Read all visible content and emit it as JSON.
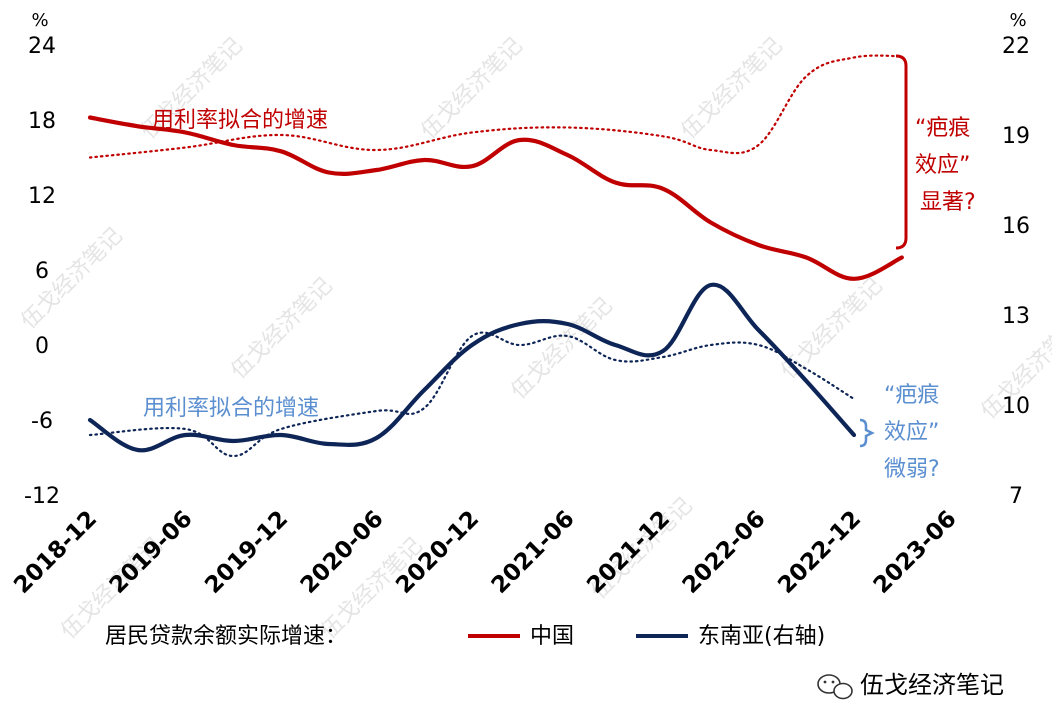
{
  "chart_data": {
    "type": "line",
    "x_categories": [
      "2018-12",
      "2019-06",
      "2019-12",
      "2020-06",
      "2020-12",
      "2021-06",
      "2021-12",
      "2022-06",
      "2022-12",
      "2023-06"
    ],
    "left_axis": {
      "unit": "%",
      "ticks": [
        "24",
        "18",
        "12",
        "6",
        "0",
        "-6",
        "-12"
      ],
      "range": [
        -12,
        24
      ]
    },
    "right_axis": {
      "unit": "%",
      "ticks": [
        "22",
        "19",
        "16",
        "13",
        "10",
        "7"
      ],
      "range": [
        7,
        22
      ]
    },
    "series": [
      {
        "name": "中国",
        "axis": "left",
        "color": "#c00000",
        "style": "solid",
        "points": [
          [
            "2018-12",
            18.2
          ],
          [
            "2019-03",
            17.5
          ],
          [
            "2019-06",
            17.0
          ],
          [
            "2019-09",
            16.0
          ],
          [
            "2019-12",
            15.5
          ],
          [
            "2020-03",
            13.8
          ],
          [
            "2020-06",
            14.0
          ],
          [
            "2020-09",
            14.8
          ],
          [
            "2020-12",
            14.3
          ],
          [
            "2021-03",
            16.4
          ],
          [
            "2021-06",
            15.2
          ],
          [
            "2021-09",
            13.0
          ],
          [
            "2021-12",
            12.5
          ],
          [
            "2022-03",
            9.8
          ],
          [
            "2022-06",
            8.0
          ],
          [
            "2022-09",
            7.0
          ],
          [
            "2022-12",
            5.3
          ],
          [
            "2023-03",
            7.0
          ]
        ]
      },
      {
        "name": "用利率拟合的增速（中国）",
        "axis": "left",
        "color": "#c00000",
        "style": "dotted",
        "points": [
          [
            "2018-12",
            15.0
          ],
          [
            "2019-06",
            15.8
          ],
          [
            "2019-12",
            16.8
          ],
          [
            "2020-06",
            15.6
          ],
          [
            "2020-12",
            17.0
          ],
          [
            "2021-06",
            17.4
          ],
          [
            "2021-12",
            16.7
          ],
          [
            "2022-03",
            15.6
          ],
          [
            "2022-06",
            16.0
          ],
          [
            "2022-09",
            21.5
          ],
          [
            "2022-12",
            23.0
          ],
          [
            "2023-03",
            23.1
          ]
        ]
      },
      {
        "name": "东南亚(右轴)",
        "axis": "right",
        "color": "#0d2557",
        "style": "solid",
        "points": [
          [
            "2018-12",
            9.5
          ],
          [
            "2019-03",
            8.5
          ],
          [
            "2019-06",
            9.0
          ],
          [
            "2019-09",
            8.8
          ],
          [
            "2019-12",
            9.0
          ],
          [
            "2020-03",
            8.7
          ],
          [
            "2020-06",
            8.9
          ],
          [
            "2020-09",
            10.5
          ],
          [
            "2020-12",
            12.0
          ],
          [
            "2021-03",
            12.7
          ],
          [
            "2021-06",
            12.7
          ],
          [
            "2021-09",
            12.0
          ],
          [
            "2021-12",
            11.8
          ],
          [
            "2022-03",
            14.0
          ],
          [
            "2022-06",
            12.5
          ],
          [
            "2022-09",
            10.8
          ],
          [
            "2022-12",
            9.0
          ]
        ]
      },
      {
        "name": "用利率拟合的增速（东南亚）",
        "axis": "right",
        "color": "#0d2557",
        "style": "dotted",
        "points": [
          [
            "2018-12",
            9.0
          ],
          [
            "2019-06",
            9.2
          ],
          [
            "2019-09",
            8.3
          ],
          [
            "2019-12",
            9.2
          ],
          [
            "2020-06",
            9.8
          ],
          [
            "2020-09",
            9.9
          ],
          [
            "2020-12",
            12.3
          ],
          [
            "2021-03",
            12.0
          ],
          [
            "2021-06",
            12.3
          ],
          [
            "2021-09",
            11.5
          ],
          [
            "2021-12",
            11.6
          ],
          [
            "2022-03",
            12.0
          ],
          [
            "2022-06",
            12.0
          ],
          [
            "2022-09",
            11.2
          ],
          [
            "2022-12",
            10.2
          ]
        ]
      }
    ],
    "annotations": {
      "fit_label_red": "用利率拟合的增速",
      "fit_label_blue": "用利率拟合的增速",
      "red_effect": [
        "“疤痕",
        "效应”",
        "显著?"
      ],
      "blue_effect": [
        "“疤痕",
        "效应”",
        "微弱?"
      ]
    },
    "legend": {
      "title": "居民贷款余额实际增速：",
      "items": [
        {
          "label": "中国",
          "color": "#c00000"
        },
        {
          "label": "东南亚(右轴)",
          "color": "#0d2557"
        }
      ],
      "placement": "bottom"
    },
    "watermark": "伍戈经济笔记",
    "source": "伍戈经济笔记"
  }
}
